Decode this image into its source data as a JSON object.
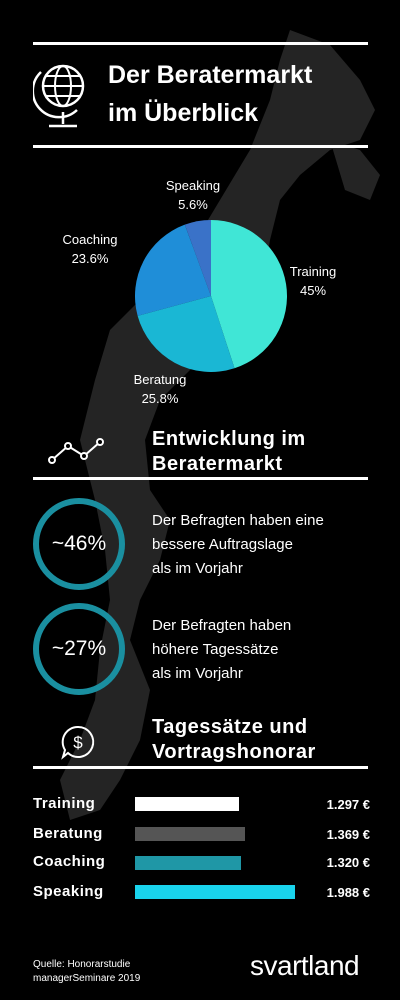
{
  "header": {
    "title_line1": "Der Beratermarkt",
    "title_line2": "im Überblick"
  },
  "chart_data": [
    {
      "type": "pie",
      "slices": [
        {
          "label": "Training",
          "value": 45,
          "value_label": "45%",
          "color": "#40e6d6"
        },
        {
          "label": "Beratung",
          "value": 25.8,
          "value_label": "25.8%",
          "color": "#1ab7d4"
        },
        {
          "label": "Coaching",
          "value": 23.6,
          "value_label": "23.6%",
          "color": "#1f8ed8"
        },
        {
          "label": "Speaking",
          "value": 5.6,
          "value_label": "5.6%",
          "color": "#3a72c8"
        }
      ]
    },
    {
      "type": "bar",
      "categories": [
        "Training",
        "Beratung",
        "Coaching",
        "Speaking"
      ],
      "values": [
        1297,
        1369,
        1320,
        1988
      ],
      "value_labels": [
        "1.297 €",
        "1.369 €",
        "1.320 €",
        "1.988 €"
      ],
      "colors": [
        "#ffffff",
        "#555555",
        "#1f97a6",
        "#19d3ec"
      ]
    }
  ],
  "section_development": {
    "title_line1": "Entwicklung im",
    "title_line2": "Beratermarkt",
    "stats": [
      {
        "value": "~46%",
        "line1": "Der Befragten haben eine",
        "line2": "bessere Auftragslage",
        "line3": "als im Vorjahr"
      },
      {
        "value": "~27%",
        "line1": "Der Befragten haben",
        "line2": "höhere Tagessätze",
        "line3": "als im Vorjahr"
      }
    ]
  },
  "section_rates": {
    "title_line1": "Tagessätze und",
    "title_line2": "Vortragshonorar"
  },
  "footer": {
    "source_line1": "Quelle: Honorarstudie",
    "source_line2": "managerSeminare 2019",
    "brand": "svartland"
  }
}
